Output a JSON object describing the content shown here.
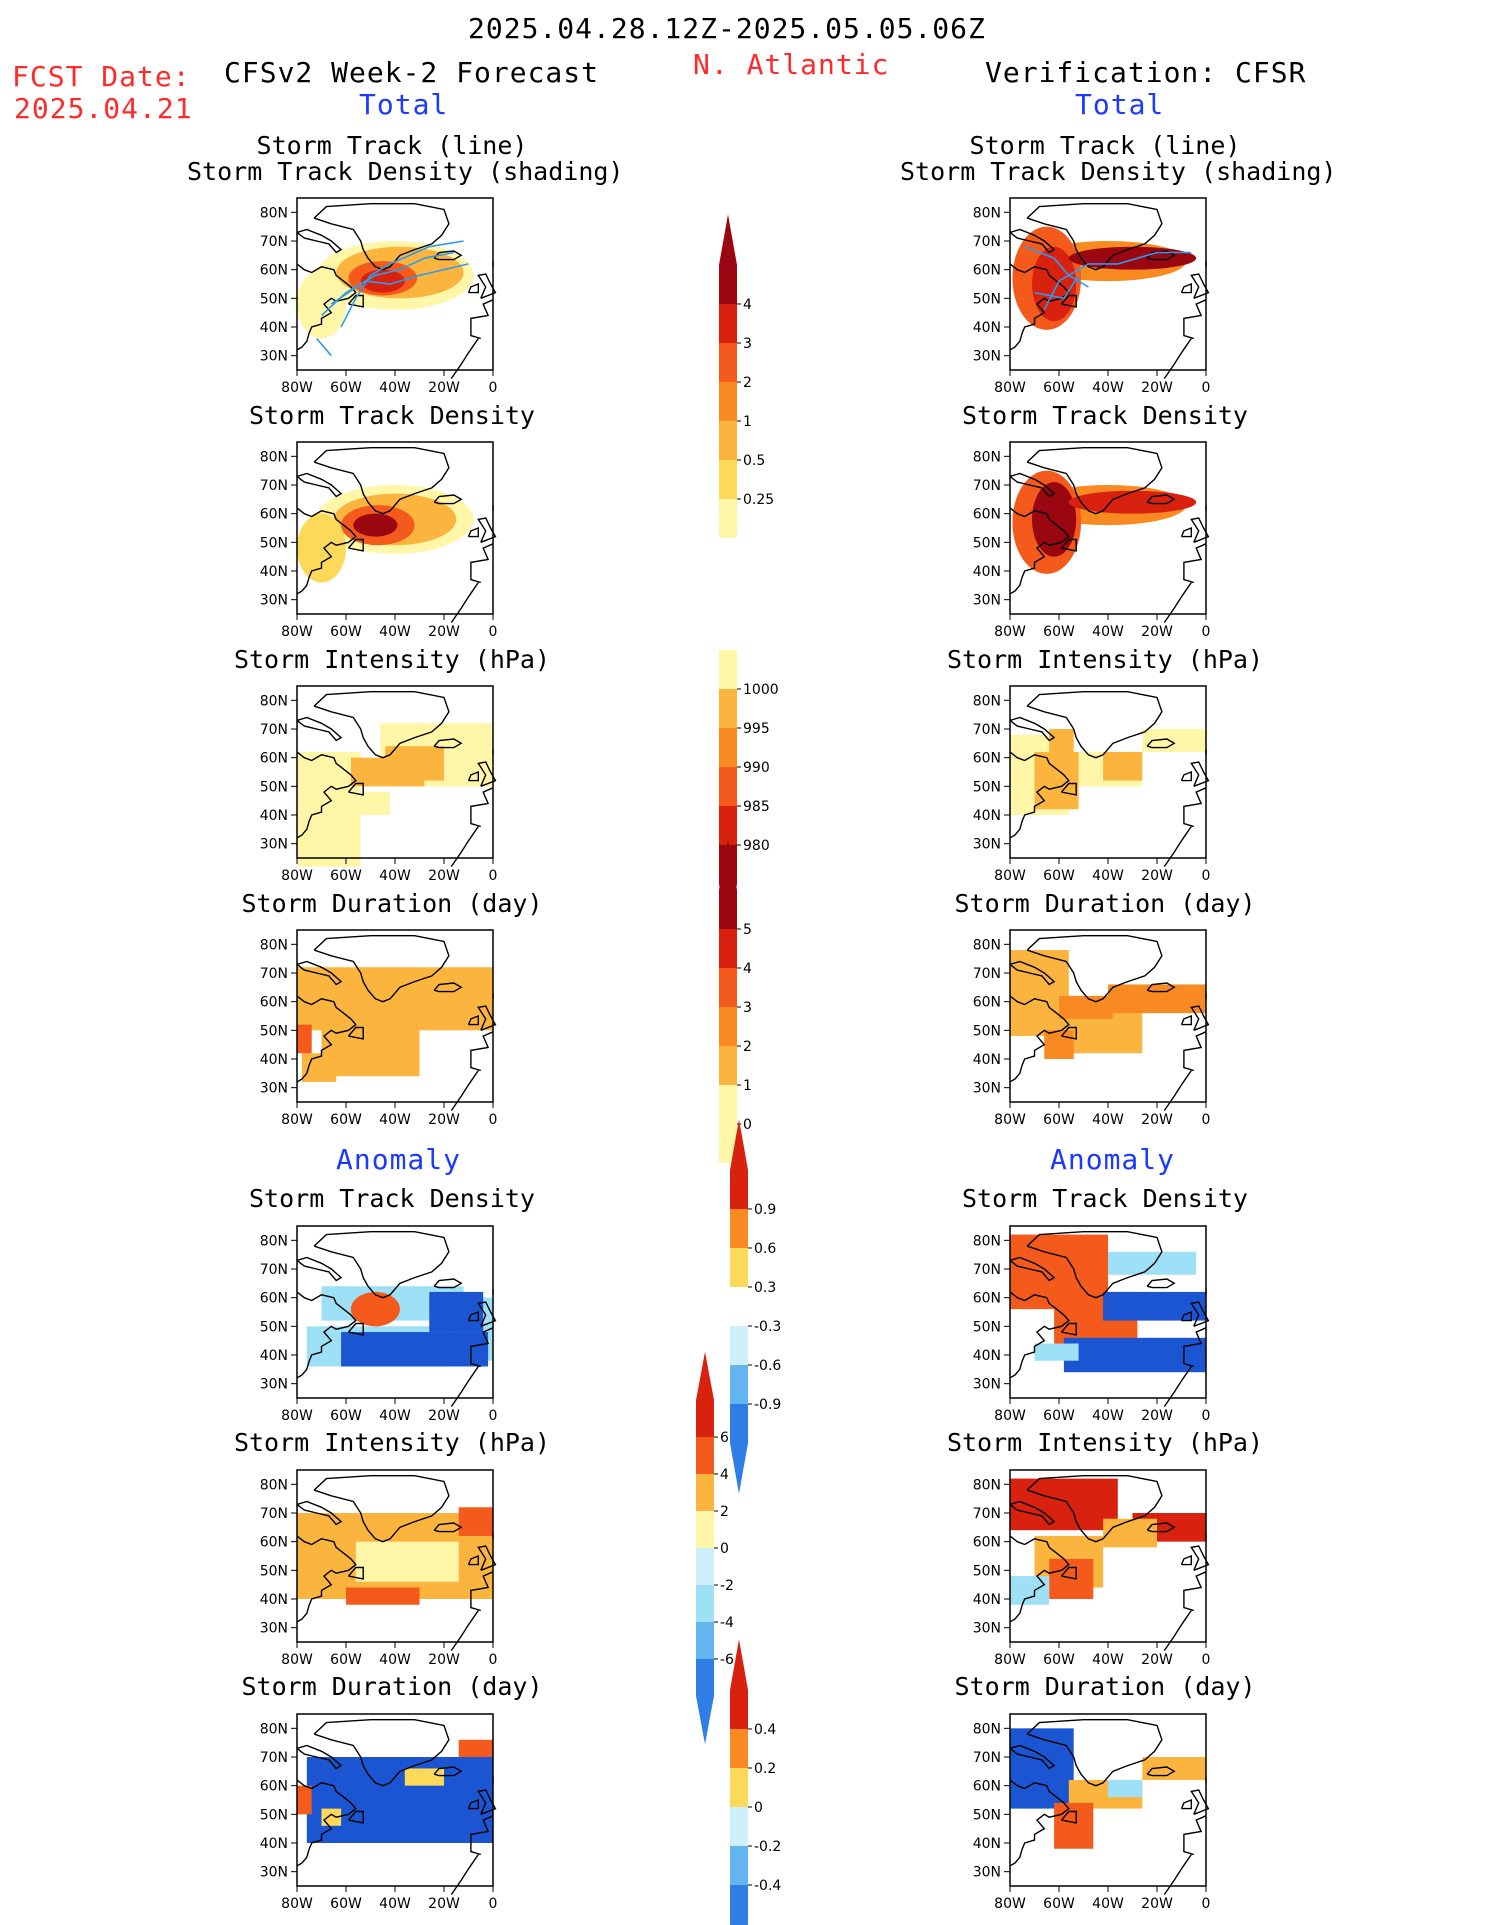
{
  "header": {
    "date_range": "2025.04.28.12Z-2025.05.05.06Z",
    "fcst_label": "FCST Date:",
    "fcst_date": "2025.04.21",
    "model_title": "CFSv2 Week-2 Forecast",
    "region": "N. Atlantic",
    "verification_title": "Verification: CFSR"
  },
  "sections": {
    "total_left": "Total",
    "total_right": "Total",
    "anomaly_left": "Anomaly",
    "anomaly_right": "Anomaly"
  },
  "panel_titles": {
    "track_line": "Storm Track (line)",
    "track_density_shading": "Storm Track Density (shading)",
    "track_density": "Storm Track Density",
    "intensity": "Storm Intensity (hPa)",
    "duration": "Storm Duration (day)"
  },
  "axes": {
    "lat_ticks": [
      "80N",
      "70N",
      "60N",
      "50N",
      "40N",
      "30N"
    ],
    "lon_ticks": [
      "80W",
      "60W",
      "40W",
      "20W",
      "0"
    ]
  },
  "colorbars": {
    "track_density_total": [
      "4",
      "3",
      "2",
      "1",
      "0.5",
      "0.25"
    ],
    "intensity_total": [
      "1000",
      "995",
      "990",
      "985",
      "980"
    ],
    "duration_total": [
      "5",
      "4",
      "3",
      "2",
      "1",
      "0"
    ],
    "track_density_anomaly": [
      "0.9",
      "0.6",
      "0.3",
      "-0.3",
      "-0.6",
      "-0.9"
    ],
    "intensity_anomaly": [
      "6",
      "4",
      "2",
      "0",
      "-2",
      "-4",
      "-6"
    ],
    "duration_anomaly": [
      "0.4",
      "0.2",
      "0",
      "-0.2",
      "-0.4"
    ]
  },
  "palette": {
    "title_red": "#ff2a2a",
    "title_blue": "#1c39ff",
    "track_line": "#2f9bef",
    "warm": [
      "#fff6a8",
      "#fdd95a",
      "#fbb43e",
      "#f98a22",
      "#f35a1c",
      "#d8210f",
      "#9a0710"
    ],
    "cool": [
      "#cff0fb",
      "#9ee0f6",
      "#64b4f0",
      "#2f7ee6",
      "#1c55d2"
    ]
  }
}
